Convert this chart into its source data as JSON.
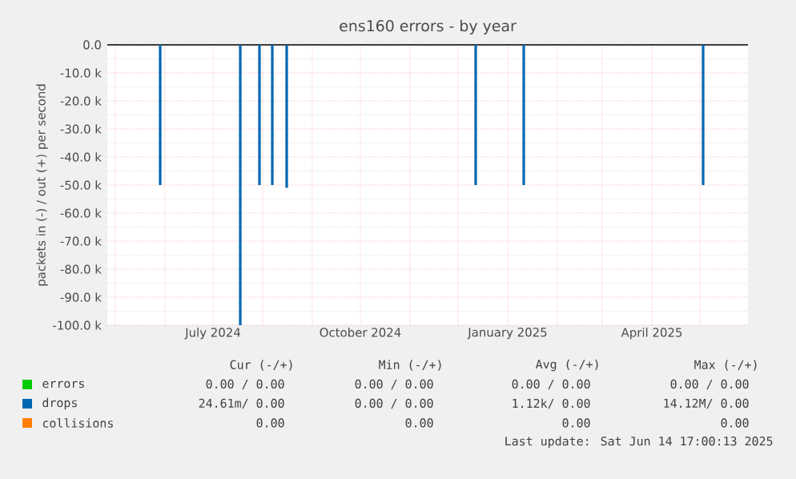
{
  "chart_data": {
    "type": "bar",
    "title": "ens160 errors - by year",
    "ylabel": "packets in (-) / out (+) per second",
    "xlim": [
      "2024-04-26",
      "2025-05-31"
    ],
    "ylim": [
      -100000,
      0
    ],
    "xticks": [
      {
        "value": "2024-05-01",
        "label": null
      },
      {
        "value": "2024-06-01",
        "label": null
      },
      {
        "value": "2024-07-01",
        "label": "July 2024"
      },
      {
        "value": "2024-08-01",
        "label": null
      },
      {
        "value": "2024-09-01",
        "label": null
      },
      {
        "value": "2024-10-01",
        "label": "October 2024"
      },
      {
        "value": "2024-11-01",
        "label": null
      },
      {
        "value": "2024-12-01",
        "label": null
      },
      {
        "value": "2025-01-01",
        "label": "January 2025"
      },
      {
        "value": "2025-02-01",
        "label": null
      },
      {
        "value": "2025-03-01",
        "label": null
      },
      {
        "value": "2025-04-01",
        "label": "April 2025"
      },
      {
        "value": "2025-05-01",
        "label": null
      }
    ],
    "yticks": [
      {
        "value": 0,
        "label": "0.0"
      },
      {
        "value": -10000,
        "label": "-10.0 k"
      },
      {
        "value": -20000,
        "label": "-20.0 k"
      },
      {
        "value": -30000,
        "label": "-30.0 k"
      },
      {
        "value": -40000,
        "label": "-40.0 k"
      },
      {
        "value": -50000,
        "label": "-50.0 k"
      },
      {
        "value": -60000,
        "label": "-60.0 k"
      },
      {
        "value": -70000,
        "label": "-70.0 k"
      },
      {
        "value": -80000,
        "label": "-80.0 k"
      },
      {
        "value": -90000,
        "label": "-90.0 k"
      },
      {
        "value": -100000,
        "label": "-100.0 k"
      }
    ],
    "grid": true,
    "legend": "bottom",
    "series": [
      {
        "name": "errors",
        "color": "#00cc00"
      },
      {
        "name": "drops",
        "color": "#0066b3",
        "x": [
          "2024-05-29",
          "2024-07-18",
          "2024-07-30",
          "2024-08-07",
          "2024-08-16",
          "2024-12-12",
          "2025-01-11",
          "2025-05-03"
        ],
        "values": [
          -50000,
          -100000,
          -50000,
          -50000,
          -51000,
          -50000,
          -50000,
          -50000
        ]
      },
      {
        "name": "collisions",
        "color": "#ff8000"
      }
    ],
    "ref_lines": [
      {
        "axis": "y",
        "value": 0,
        "color": "#000000"
      }
    ],
    "annotations": [
      "Cur (-/+)",
      "Min (-/+)",
      "Avg (-/+)",
      "Max (-/+)",
      "0.00 /  0.00",
      "0.00 /  0.00",
      "0.00 /  0.00",
      "0.00 /  0.00",
      "24.61m/  0.00",
      "0.00 /  0.00",
      "1.12k/  0.00",
      "14.12M/  0.00",
      "0.00",
      "0.00",
      "0.00",
      "0.00",
      "Last update: Sat Jun 14 17:00:13 2025"
    ]
  }
}
